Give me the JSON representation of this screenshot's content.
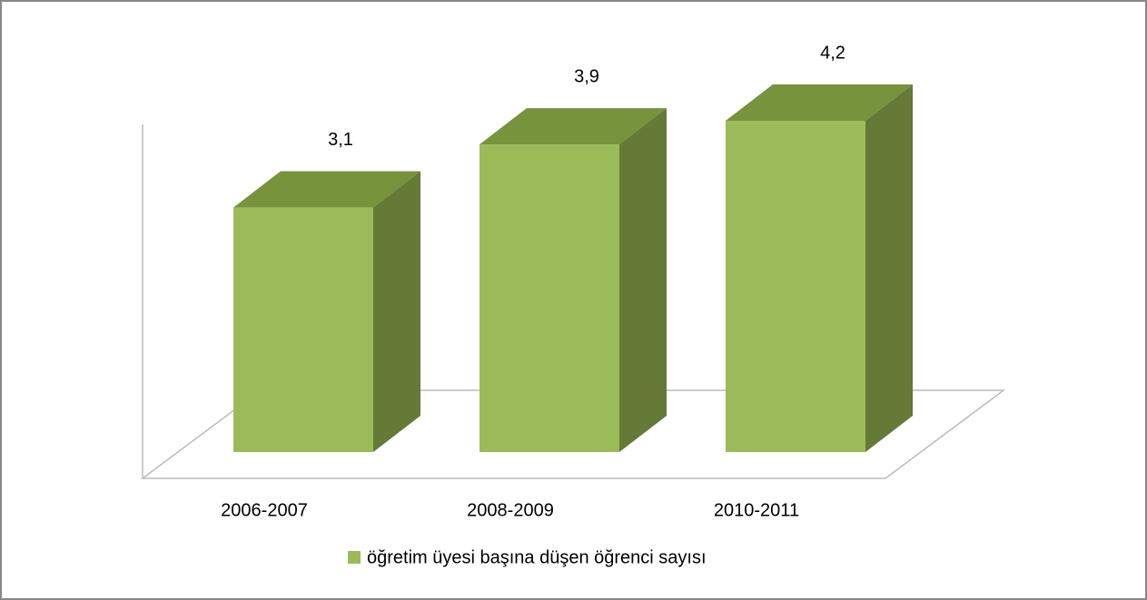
{
  "chart_data": {
    "type": "bar3d",
    "categories": [
      "2006-2007",
      "2008-2009",
      "2010-2011"
    ],
    "series": [
      {
        "name": "öğretim üyesi başına düşen öğrenci sayısı",
        "color": "#9bbb59",
        "values": [
          3.1,
          3.9,
          4.2
        ],
        "value_labels": [
          "3,1",
          "3,9",
          "4,2"
        ]
      }
    ],
    "legend": "bottom"
  }
}
